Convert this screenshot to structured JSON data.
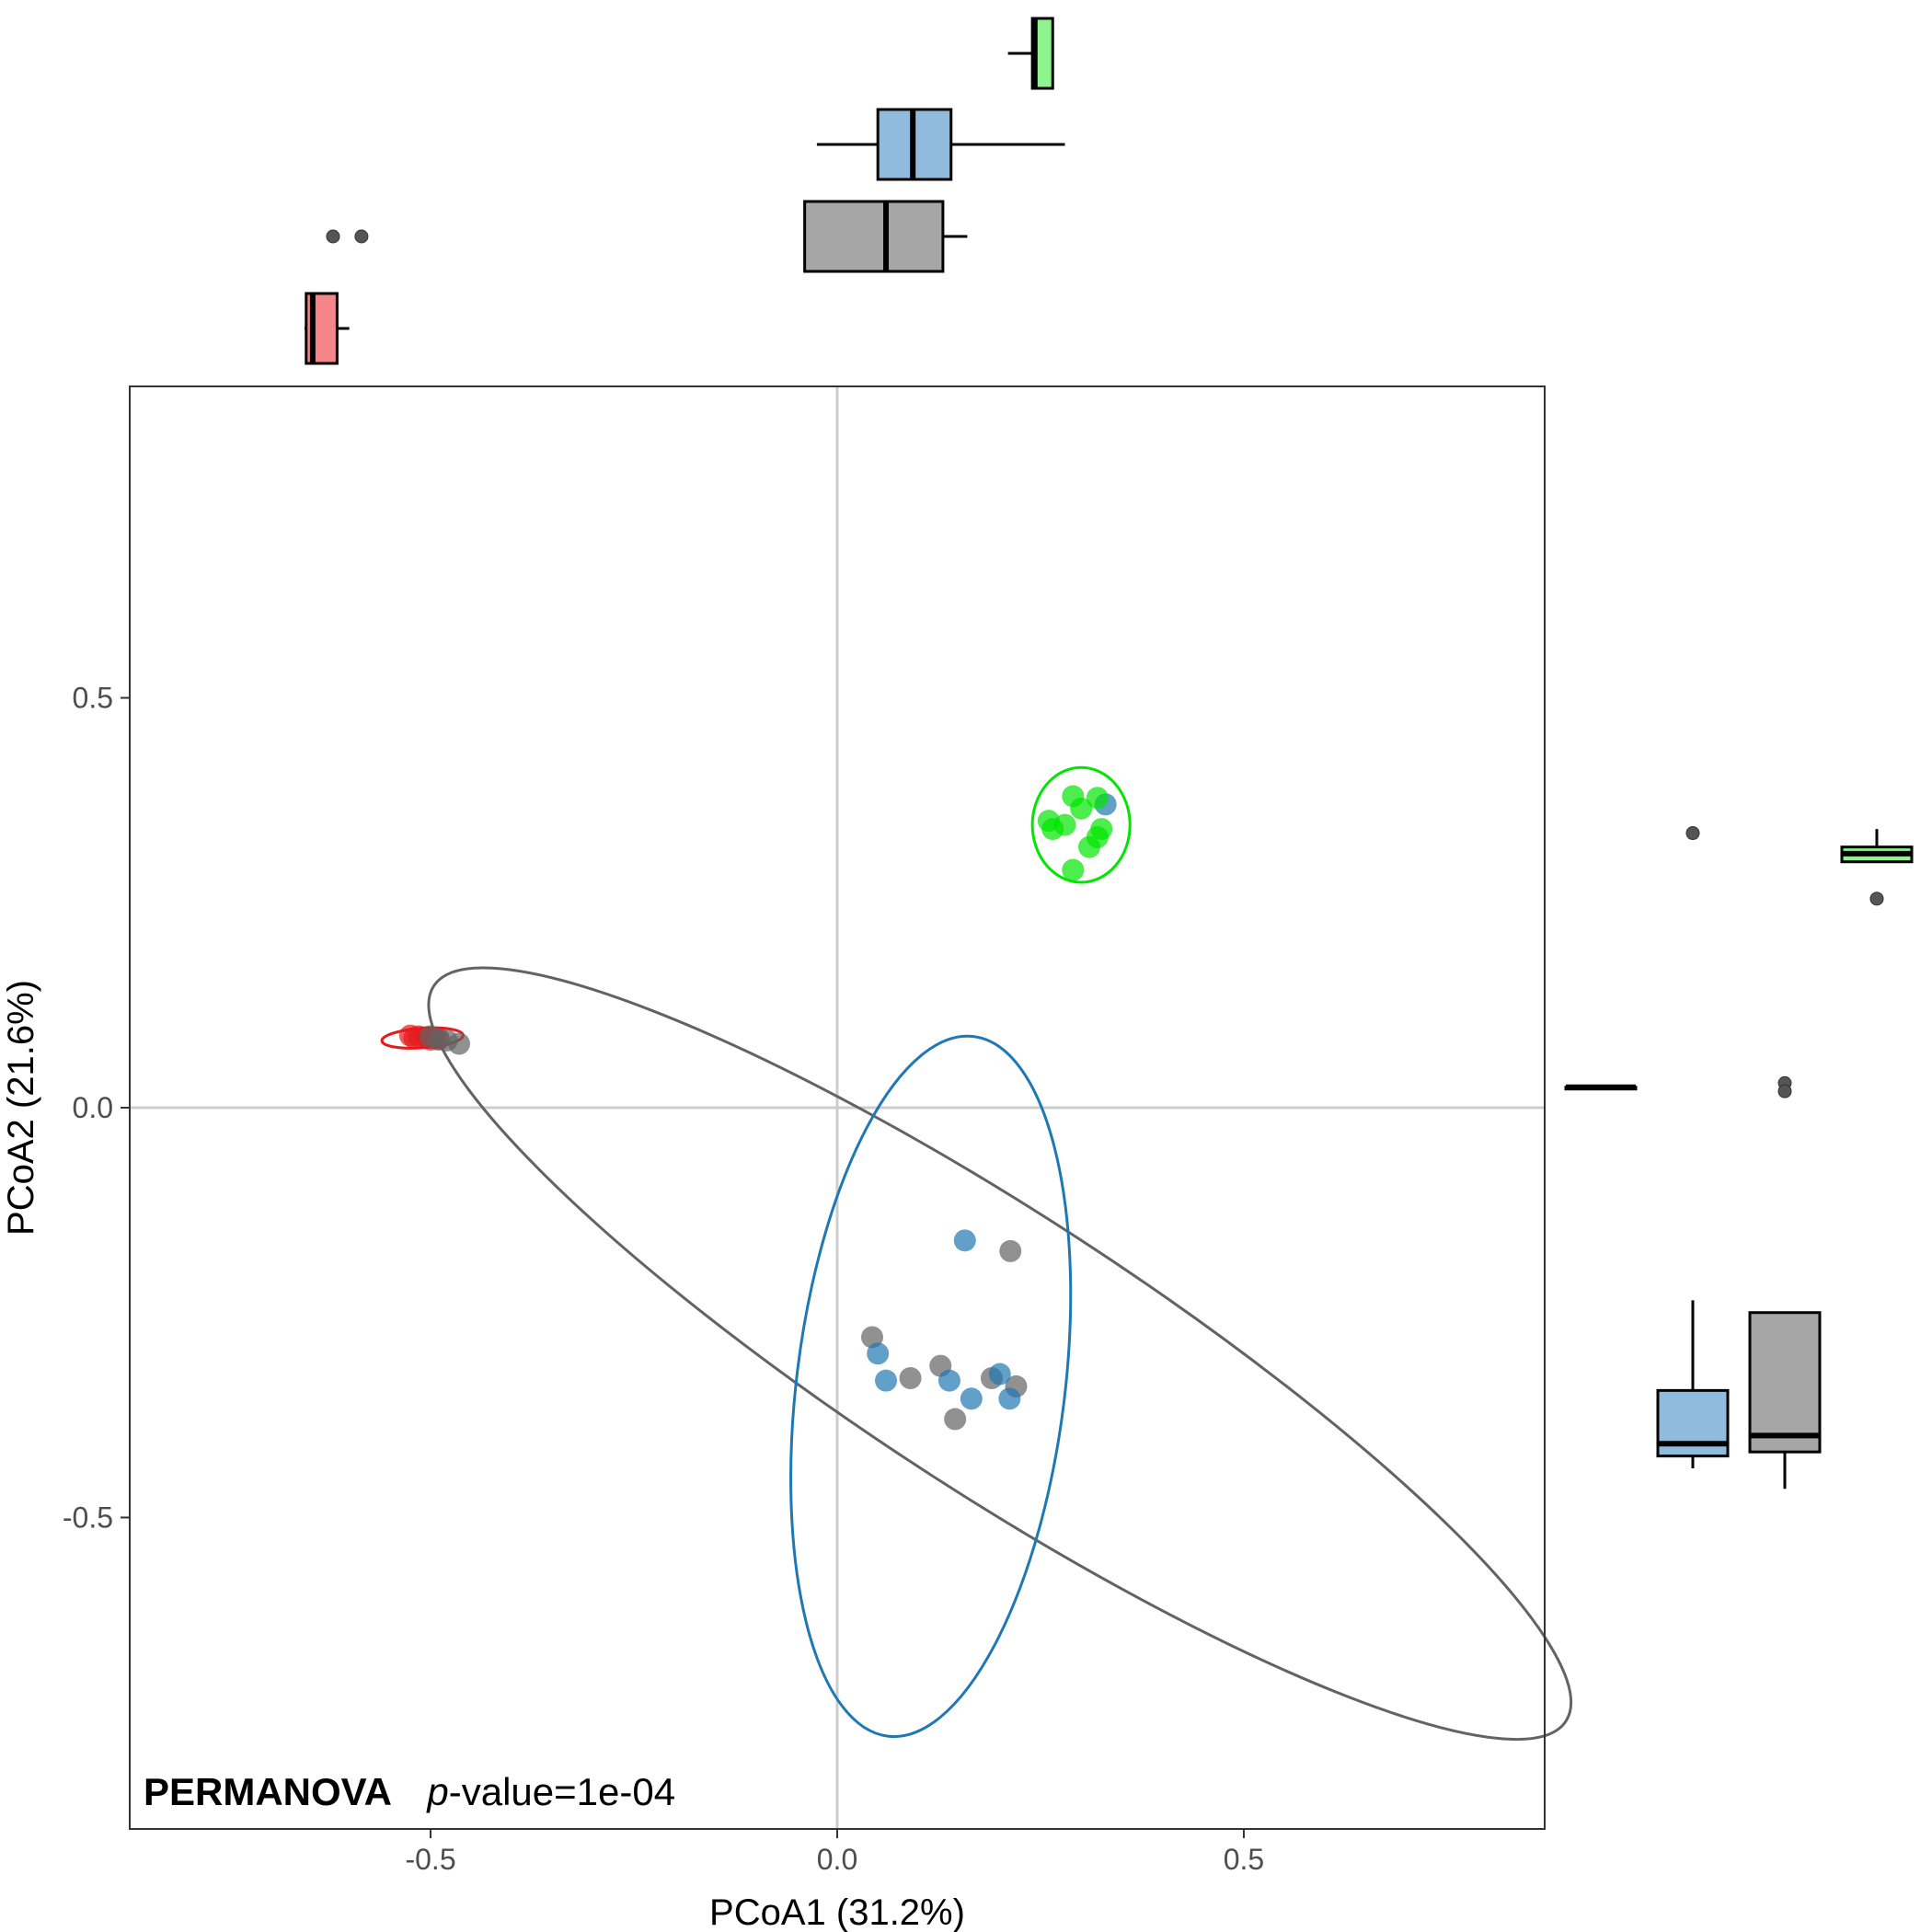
{
  "chart_data": {
    "type": "scatter",
    "subtype": "PCoA ordination with marginal boxplots",
    "xlabel": "PCoA1 (31.2%)",
    "ylabel": "PCoA2 (21.6%)",
    "xlim": [
      -0.87,
      0.87
    ],
    "ylim": [
      -0.88,
      0.88
    ],
    "xticks": [
      {
        "value": -0.5,
        "label": "-0.5"
      },
      {
        "value": 0.0,
        "label": "0.0"
      },
      {
        "value": 0.5,
        "label": "0.5"
      }
    ],
    "yticks": [
      {
        "value": 0.5,
        "label": "0.5"
      },
      {
        "value": 0.0,
        "label": "0.0"
      },
      {
        "value": -0.5,
        "label": "-0.5"
      }
    ],
    "zero_lines": true,
    "grid": false,
    "legend": "none",
    "annotation": {
      "method": "PERMANOVA",
      "p_prefix": "p",
      "p_value": "-value=1e-04"
    },
    "groups": [
      {
        "color": "#E41A1C",
        "box_fill": "#F4868A",
        "points": [
          [
            -0.525,
            0.088
          ],
          [
            -0.515,
            0.087
          ],
          [
            -0.505,
            0.086
          ],
          [
            -0.495,
            0.085
          ],
          [
            -0.49,
            0.084
          ],
          [
            -0.52,
            0.085
          ],
          [
            -0.5,
            0.083
          ]
        ],
        "ellipse": {
          "cx": -0.51,
          "cy": 0.085,
          "rx": 0.05,
          "ry": 0.012,
          "angle": -4
        },
        "box_x": {
          "min": -0.655,
          "q1": -0.653,
          "median": -0.645,
          "q3": -0.615,
          "max": -0.6,
          "outliers": []
        },
        "box_y": {
          "min": 0.025,
          "q1": 0.025,
          "median": 0.025,
          "q3": 0.025,
          "max": 0.025,
          "outliers": []
        }
      },
      {
        "color": "#636363",
        "box_fill": "#A6A6A6",
        "points": [
          [
            -0.5,
            0.087
          ],
          [
            -0.49,
            0.083
          ],
          [
            -0.48,
            0.082
          ],
          [
            -0.465,
            0.078
          ],
          [
            0.043,
            -0.28
          ],
          [
            0.09,
            -0.33
          ],
          [
            0.127,
            -0.315
          ],
          [
            0.145,
            -0.38
          ],
          [
            0.19,
            -0.33
          ],
          [
            0.213,
            -0.175
          ],
          [
            0.22,
            -0.34
          ]
        ],
        "ellipse": {
          "cx": 0.2,
          "cy": -0.3,
          "rx": 0.83,
          "ry": 0.17,
          "angle": 33
        },
        "box_x": {
          "min": -0.04,
          "q1": -0.04,
          "median": 0.06,
          "q3": 0.13,
          "max": 0.16,
          "outliers": [
            -0.62,
            -0.585
          ]
        },
        "box_y": {
          "min": -0.465,
          "q1": -0.42,
          "median": -0.4,
          "q3": -0.25,
          "max": -0.25,
          "outliers": [
            0.03,
            0.02
          ]
        }
      },
      {
        "color": "#1F78B4",
        "box_fill": "#91BBDD",
        "points": [
          [
            0.157,
            -0.162
          ],
          [
            0.05,
            -0.3
          ],
          [
            0.06,
            -0.333
          ],
          [
            0.138,
            -0.333
          ],
          [
            0.165,
            -0.355
          ],
          [
            0.2,
            -0.325
          ],
          [
            0.212,
            -0.355
          ],
          [
            0.33,
            0.37
          ]
        ],
        "ellipse": {
          "cx": 0.115,
          "cy": -0.34,
          "rx": 0.165,
          "ry": 0.43,
          "angle": 7
        },
        "box_x": {
          "min": -0.025,
          "q1": 0.05,
          "median": 0.093,
          "q3": 0.14,
          "max": 0.28,
          "outliers": []
        },
        "box_y": {
          "min": -0.44,
          "q1": -0.425,
          "median": -0.41,
          "q3": -0.345,
          "max": -0.235,
          "outliers": [
            0.335
          ]
        }
      },
      {
        "color": "#00E600",
        "box_fill": "#8EF58E",
        "points": [
          [
            0.29,
            0.38
          ],
          [
            0.32,
            0.378
          ],
          [
            0.26,
            0.35
          ],
          [
            0.28,
            0.345
          ],
          [
            0.265,
            0.34
          ],
          [
            0.325,
            0.34
          ],
          [
            0.32,
            0.33
          ],
          [
            0.31,
            0.318
          ],
          [
            0.29,
            0.29
          ],
          [
            0.3,
            0.365
          ]
        ],
        "ellipse": {
          "cx": 0.3,
          "cy": 0.345,
          "rx": 0.06,
          "ry": 0.07,
          "angle": 0
        },
        "box_x": {
          "min": 0.21,
          "q1": 0.24,
          "median": 0.243,
          "q3": 0.265,
          "max": 0.265,
          "outliers": []
        },
        "box_y": {
          "min": 0.3,
          "q1": 0.3,
          "median": 0.31,
          "q3": 0.318,
          "max": 0.34,
          "outliers": [
            0.255
          ]
        }
      }
    ]
  }
}
